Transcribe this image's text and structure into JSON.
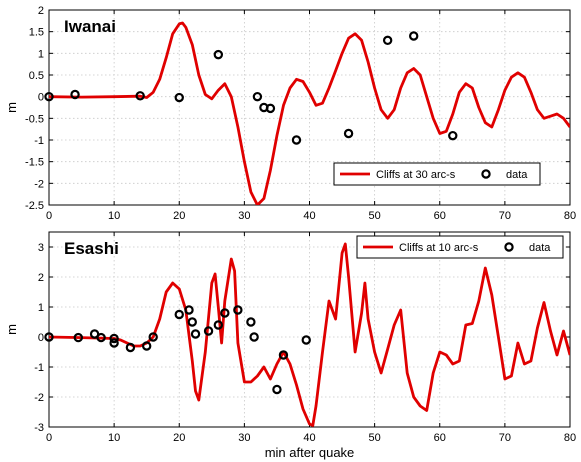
{
  "chart_data": [
    {
      "type": "line",
      "title": "Iwanai",
      "xlabel": "",
      "ylabel": "m",
      "xlim": [
        0,
        80
      ],
      "ylim": [
        -2.5,
        2
      ],
      "xticks": [
        0,
        10,
        20,
        30,
        40,
        50,
        60,
        70,
        80
      ],
      "yticks": [
        -2.5,
        -2,
        -1.5,
        -1,
        -0.5,
        0,
        0.5,
        1,
        1.5,
        2
      ],
      "ytick_labels": [
        "-2.5",
        "-2",
        "-1.5",
        "-1",
        "-0.5",
        "0",
        "0.5",
        "1",
        "1.5",
        "2"
      ],
      "grid": true,
      "legend": "lower-right",
      "series": [
        {
          "name": "Cliffs at 30 arc-s",
          "kind": "line",
          "color": "#e00000",
          "points": [
            [
              0,
              0.0
            ],
            [
              5,
              -0.01
            ],
            [
              10,
              0.0
            ],
            [
              14,
              0.01
            ],
            [
              15,
              -0.02
            ],
            [
              16,
              0.1
            ],
            [
              17,
              0.4
            ],
            [
              18,
              0.9
            ],
            [
              19,
              1.45
            ],
            [
              20,
              1.68
            ],
            [
              20.5,
              1.7
            ],
            [
              21,
              1.6
            ],
            [
              22,
              1.2
            ],
            [
              23,
              0.5
            ],
            [
              24,
              0.05
            ],
            [
              25,
              -0.05
            ],
            [
              26,
              0.15
            ],
            [
              27,
              0.3
            ],
            [
              28,
              0.0
            ],
            [
              29,
              -0.7
            ],
            [
              30,
              -1.5
            ],
            [
              31,
              -2.2
            ],
            [
              32,
              -2.5
            ],
            [
              33,
              -2.35
            ],
            [
              34,
              -1.7
            ],
            [
              35,
              -0.9
            ],
            [
              36,
              -0.2
            ],
            [
              37,
              0.2
            ],
            [
              38,
              0.4
            ],
            [
              39,
              0.35
            ],
            [
              40,
              0.1
            ],
            [
              41,
              -0.2
            ],
            [
              42,
              -0.15
            ],
            [
              43,
              0.2
            ],
            [
              44,
              0.6
            ],
            [
              45,
              1.0
            ],
            [
              46,
              1.35
            ],
            [
              47,
              1.45
            ],
            [
              48,
              1.3
            ],
            [
              49,
              0.8
            ],
            [
              50,
              0.2
            ],
            [
              51,
              -0.3
            ],
            [
              52,
              -0.5
            ],
            [
              53,
              -0.3
            ],
            [
              54,
              0.2
            ],
            [
              55,
              0.55
            ],
            [
              56,
              0.65
            ],
            [
              57,
              0.5
            ],
            [
              58,
              0.0
            ],
            [
              59,
              -0.5
            ],
            [
              60,
              -0.85
            ],
            [
              61,
              -0.8
            ],
            [
              62,
              -0.4
            ],
            [
              63,
              0.1
            ],
            [
              64,
              0.3
            ],
            [
              65,
              0.2
            ],
            [
              66,
              -0.25
            ],
            [
              67,
              -0.6
            ],
            [
              68,
              -0.7
            ],
            [
              69,
              -0.3
            ],
            [
              70,
              0.15
            ],
            [
              71,
              0.45
            ],
            [
              72,
              0.55
            ],
            [
              73,
              0.45
            ],
            [
              74,
              0.1
            ],
            [
              75,
              -0.3
            ],
            [
              76,
              -0.5
            ],
            [
              77,
              -0.45
            ],
            [
              78,
              -0.4
            ],
            [
              79,
              -0.5
            ],
            [
              80,
              -0.7
            ]
          ]
        },
        {
          "name": "data",
          "kind": "scatter",
          "color": "#000000",
          "points": [
            [
              0,
              0.0
            ],
            [
              4,
              0.05
            ],
            [
              14,
              0.02
            ],
            [
              20,
              -0.02
            ],
            [
              26,
              0.97
            ],
            [
              32,
              0.0
            ],
            [
              33,
              -0.25
            ],
            [
              34,
              -0.27
            ],
            [
              38,
              -1.0
            ],
            [
              46,
              -0.85
            ],
            [
              52,
              1.3
            ],
            [
              56,
              1.4
            ],
            [
              62,
              -0.9
            ]
          ]
        }
      ]
    },
    {
      "type": "line",
      "title": "Esashi",
      "xlabel": "min after quake",
      "ylabel": "m",
      "xlim": [
        0,
        80
      ],
      "ylim": [
        -3,
        3.5
      ],
      "xticks": [
        0,
        10,
        20,
        30,
        40,
        50,
        60,
        70,
        80
      ],
      "yticks": [
        -3,
        -2,
        -1,
        0,
        1,
        2,
        3
      ],
      "ytick_labels": [
        "-3",
        "-2",
        "-1",
        "0",
        "1",
        "2",
        "3"
      ],
      "grid": true,
      "legend": "top-right",
      "series": [
        {
          "name": "Cliffs at 10 arc-s",
          "kind": "line",
          "color": "#e00000",
          "points": [
            [
              0,
              0.0
            ],
            [
              5,
              -0.02
            ],
            [
              10,
              -0.05
            ],
            [
              11,
              -0.1
            ],
            [
              12,
              -0.2
            ],
            [
              13,
              -0.3
            ],
            [
              14,
              -0.3
            ],
            [
              15,
              -0.2
            ],
            [
              16,
              0.0
            ],
            [
              17,
              0.6
            ],
            [
              18,
              1.5
            ],
            [
              19,
              1.8
            ],
            [
              20,
              1.6
            ],
            [
              21,
              0.9
            ],
            [
              22,
              -0.8
            ],
            [
              22.5,
              -1.8
            ],
            [
              23,
              -2.1
            ],
            [
              24,
              -0.5
            ],
            [
              25,
              1.8
            ],
            [
              25.5,
              2.1
            ],
            [
              26,
              1.0
            ],
            [
              26.5,
              -0.2
            ],
            [
              27,
              1.2
            ],
            [
              28,
              2.6
            ],
            [
              28.5,
              2.2
            ],
            [
              29,
              -0.2
            ],
            [
              30,
              -1.5
            ],
            [
              31,
              -1.5
            ],
            [
              32,
              -1.3
            ],
            [
              33,
              -1.0
            ],
            [
              34,
              -1.4
            ],
            [
              35,
              -0.9
            ],
            [
              36,
              -0.5
            ],
            [
              37,
              -0.9
            ],
            [
              38,
              -1.6
            ],
            [
              39,
              -2.4
            ],
            [
              40,
              -2.9
            ],
            [
              40.5,
              -2.95
            ],
            [
              41,
              -2.3
            ],
            [
              42,
              -0.5
            ],
            [
              43,
              1.2
            ],
            [
              44,
              0.6
            ],
            [
              45,
              2.8
            ],
            [
              45.5,
              3.1
            ],
            [
              46,
              2.0
            ],
            [
              47,
              -0.5
            ],
            [
              48,
              0.8
            ],
            [
              48.5,
              1.8
            ],
            [
              49,
              0.6
            ],
            [
              50,
              -0.5
            ],
            [
              51,
              -1.2
            ],
            [
              52,
              -0.4
            ],
            [
              53,
              0.4
            ],
            [
              54,
              0.9
            ],
            [
              55,
              -1.2
            ],
            [
              56,
              -2.0
            ],
            [
              57,
              -2.3
            ],
            [
              58,
              -2.45
            ],
            [
              59,
              -1.2
            ],
            [
              60,
              -0.5
            ],
            [
              61,
              -0.6
            ],
            [
              62,
              -0.9
            ],
            [
              63,
              -0.8
            ],
            [
              64,
              0.4
            ],
            [
              65,
              0.45
            ],
            [
              66,
              1.2
            ],
            [
              67,
              2.3
            ],
            [
              68,
              1.4
            ],
            [
              69,
              0.0
            ],
            [
              70,
              -1.4
            ],
            [
              71,
              -1.3
            ],
            [
              72,
              -0.2
            ],
            [
              73,
              -0.9
            ],
            [
              74,
              -0.8
            ],
            [
              75,
              0.3
            ],
            [
              76,
              1.15
            ],
            [
              77,
              0.2
            ],
            [
              78,
              -0.6
            ],
            [
              79,
              0.2
            ],
            [
              80,
              -0.6
            ]
          ]
        },
        {
          "name": "data",
          "kind": "scatter",
          "color": "#000000",
          "points": [
            [
              0,
              0.0
            ],
            [
              4.5,
              -0.02
            ],
            [
              7,
              0.1
            ],
            [
              8,
              -0.02
            ],
            [
              10,
              -0.05
            ],
            [
              10,
              -0.2
            ],
            [
              12.5,
              -0.35
            ],
            [
              15,
              -0.3
            ],
            [
              16,
              0.0
            ],
            [
              20,
              0.75
            ],
            [
              21.5,
              0.9
            ],
            [
              22,
              0.5
            ],
            [
              22.5,
              0.1
            ],
            [
              24.5,
              0.2
            ],
            [
              26,
              0.4
            ],
            [
              27,
              0.8
            ],
            [
              29,
              0.9
            ],
            [
              31,
              0.5
            ],
            [
              31.5,
              0.0
            ],
            [
              35,
              -1.75
            ],
            [
              36,
              -0.6
            ],
            [
              39.5,
              -0.1
            ]
          ]
        }
      ]
    }
  ]
}
